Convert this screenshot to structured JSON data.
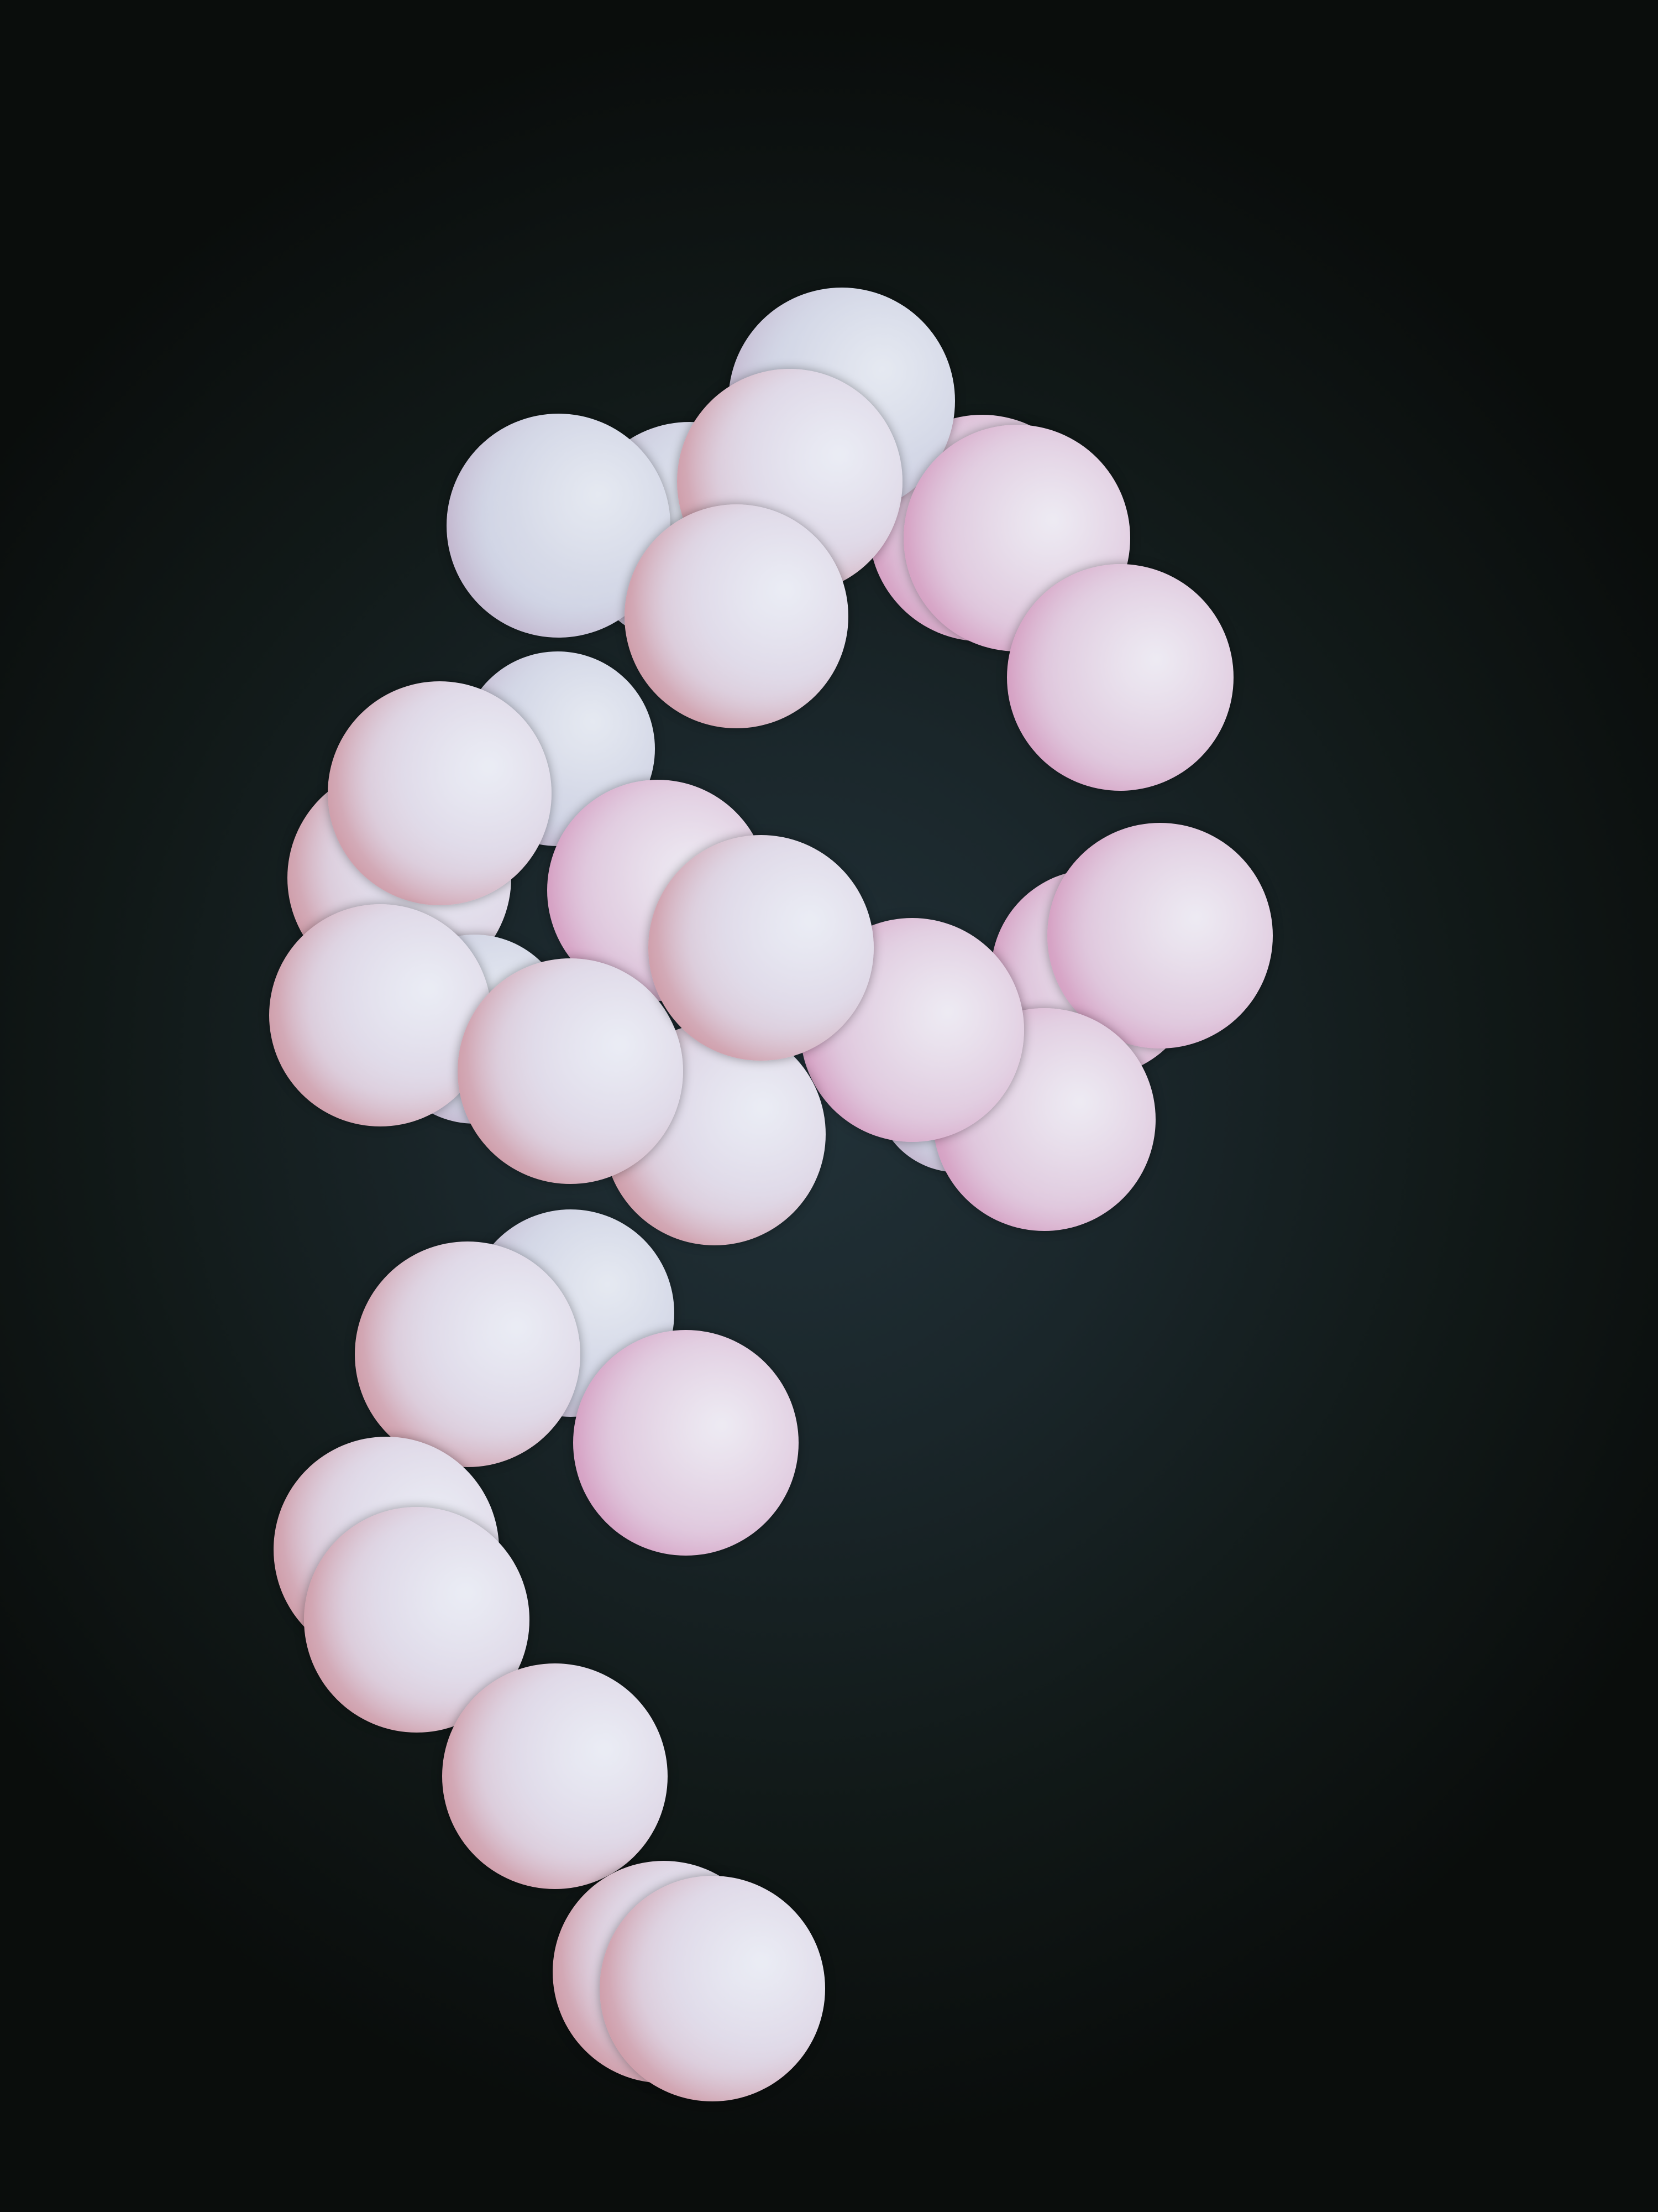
{
  "scene": {
    "subject": "question-mark-of-spheres",
    "sphere_count": 33,
    "colors": {
      "background_center": "#223239",
      "background_edge": "#0a0d0c",
      "sphere_highlight": "#e6e8f2",
      "sphere_body": "#dcc6d8",
      "sphere_shadow_warm": "#b8543e"
    }
  }
}
